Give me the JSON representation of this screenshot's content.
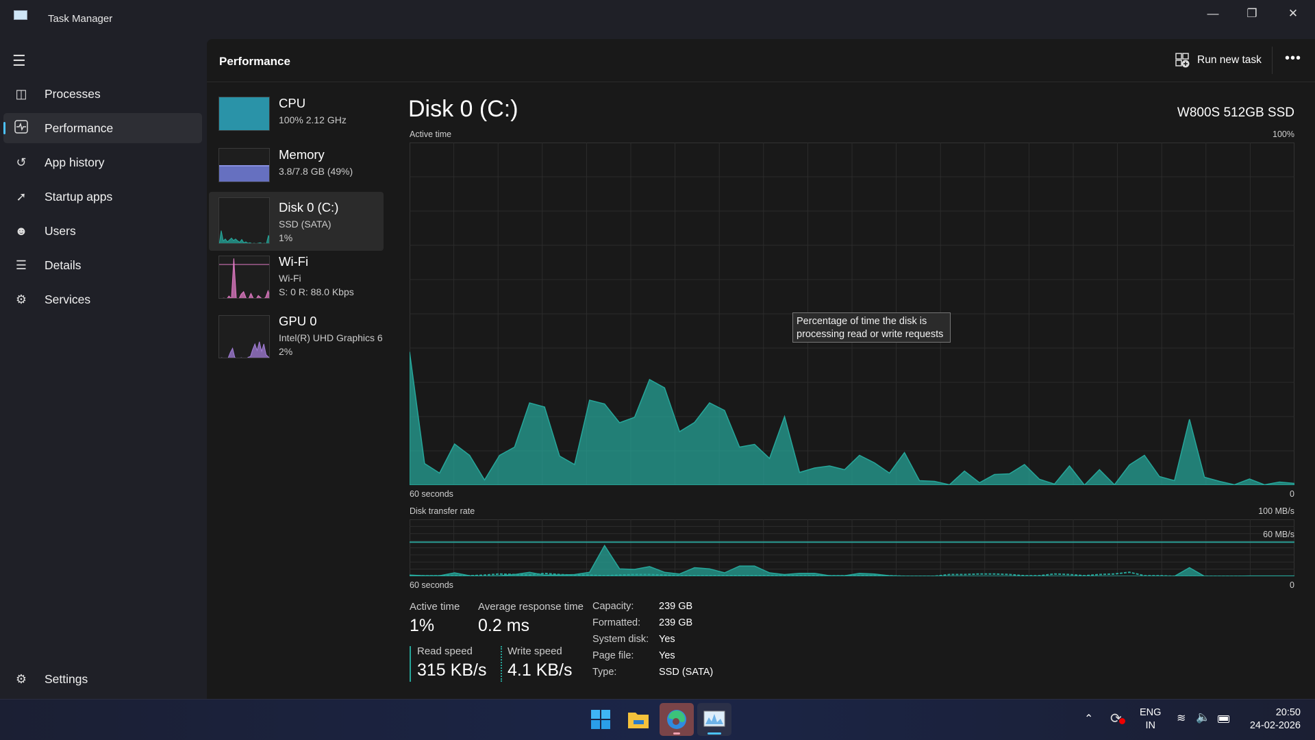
{
  "window": {
    "title": "Task Manager"
  },
  "nav": {
    "items": [
      {
        "label": "Processes",
        "icon": "processes-icon"
      },
      {
        "label": "Performance",
        "icon": "performance-icon",
        "active": true
      },
      {
        "label": "App history",
        "icon": "history-icon"
      },
      {
        "label": "Startup apps",
        "icon": "startup-icon"
      },
      {
        "label": "Users",
        "icon": "users-icon"
      },
      {
        "label": "Details",
        "icon": "details-icon"
      },
      {
        "label": "Services",
        "icon": "services-icon"
      }
    ],
    "settings": "Settings"
  },
  "header": {
    "title": "Performance",
    "run_new_task": "Run new task",
    "more": "•••"
  },
  "resources": [
    {
      "name": "CPU",
      "line1": "100%  2.12 GHz",
      "color": "#2a93a8"
    },
    {
      "name": "Memory",
      "line1": "3.8/7.8 GB (49%)",
      "color": "#6670c0"
    },
    {
      "name": "Disk 0 (C:)",
      "line1": "SSD (SATA)",
      "line2": "1%",
      "color": "#26a69a"
    },
    {
      "name": "Wi-Fi",
      "line1": "Wi-Fi",
      "line2": "S: 0 R: 88.0 Kbps",
      "color": "#e27bc5"
    },
    {
      "name": "GPU 0",
      "line1": "Intel(R) UHD Graphics 6",
      "line2": "2%",
      "color": "#a37ed8"
    }
  ],
  "detail": {
    "title": "Disk 0 (C:)",
    "model": "W800S 512GB SSD",
    "tooltip": "Percentage of time the disk is processing read or write requests",
    "stats": {
      "active_time_label": "Active time",
      "active_time": "1%",
      "avg_resp_label": "Average response time",
      "avg_resp": "0.2 ms",
      "read_label": "Read speed",
      "read": "315 KB/s",
      "write_label": "Write speed",
      "write": "4.1 KB/s"
    },
    "props": [
      [
        "Capacity:",
        "239 GB"
      ],
      [
        "Formatted:",
        "239 GB"
      ],
      [
        "System disk:",
        "Yes"
      ],
      [
        "Page file:",
        "Yes"
      ],
      [
        "Type:",
        "SSD (SATA)"
      ]
    ]
  },
  "chart_data": [
    {
      "type": "area",
      "title": "Active time",
      "ymax_label": "100%",
      "xlabel_left": "60 seconds",
      "xlabel_right": "0",
      "ylim": [
        0,
        100
      ],
      "color": "#26a69a",
      "values": [
        38.9,
        6.3,
        3.5,
        12,
        8.7,
        1.5,
        8.7,
        11.1,
        24,
        22.8,
        8.5,
        6,
        24.8,
        23.7,
        18.2,
        19.8,
        30.8,
        28.4,
        15.6,
        18.3,
        24,
        21.8,
        11.1,
        11.9,
        7.8,
        20,
        3.7,
        5,
        5.6,
        4.5,
        8.7,
        6.5,
        3.5,
        9.5,
        1.3,
        1.1,
        0.1,
        4.1,
        0.7,
        3.1,
        3.3,
        6,
        1.7,
        0.3,
        5.6,
        0,
        4.5,
        0.1,
        5.9,
        8.7,
        2.5,
        1.3,
        19.2,
        2.3,
        1.1,
        0.1,
        1.8,
        0.1,
        0.9,
        0.5
      ]
    },
    {
      "type": "area",
      "title": "Disk transfer rate",
      "ymax_label": "100 MB/s",
      "scale_line_label": "60 MB/s",
      "scale_line": 60,
      "xlabel_left": "60 seconds",
      "xlabel_right": "0",
      "ylim": [
        0,
        100
      ],
      "color": "#26a69a",
      "series": [
        {
          "name": "Read",
          "style": "solid",
          "values": [
            2,
            1,
            1,
            6,
            1,
            0,
            1,
            3,
            7,
            2,
            2,
            3,
            7,
            54,
            13,
            12,
            17,
            7,
            4,
            15,
            13,
            6,
            18,
            18,
            6,
            3,
            5,
            5,
            1,
            1,
            5,
            4,
            1,
            0,
            0,
            0,
            0,
            0,
            0,
            0,
            0,
            0,
            0,
            0,
            0,
            0,
            0,
            0,
            0,
            0,
            0,
            0,
            15,
            0,
            0,
            0,
            0.5,
            0.5,
            0.5,
            0.5
          ]
        },
        {
          "name": "Write",
          "style": "dashed",
          "values": [
            1,
            1,
            1,
            1,
            1,
            2,
            4,
            3,
            2,
            5,
            3,
            2,
            2,
            1,
            2,
            3,
            3,
            2,
            1,
            1,
            1,
            1,
            1,
            1,
            1,
            1,
            1,
            1,
            1,
            1,
            1,
            1,
            1,
            0,
            0,
            0,
            3,
            3,
            4,
            4,
            3,
            1,
            1,
            4,
            3,
            1,
            3,
            4,
            7,
            1,
            1,
            0,
            0,
            0,
            0,
            0,
            0,
            0,
            0,
            0
          ]
        }
      ]
    }
  ],
  "taskbar": {
    "apps": [
      "start",
      "file-explorer",
      "edge",
      "task-manager"
    ],
    "lang1": "ENG",
    "lang2": "IN",
    "time": "20:50",
    "date": "24-02-2026"
  }
}
